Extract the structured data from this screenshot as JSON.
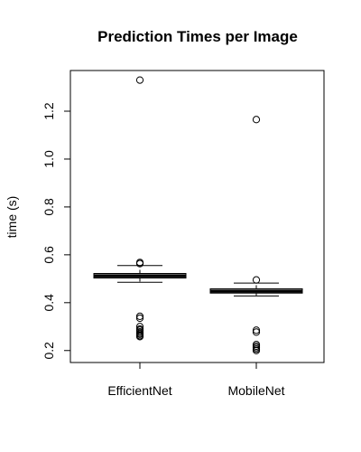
{
  "chart_data": {
    "type": "boxplot",
    "title": "Prediction Times per Image",
    "xlabel": "",
    "ylabel": "time (s)",
    "ylim": [
      0.15,
      1.37
    ],
    "yticks": [
      0.2,
      0.4,
      0.6,
      0.8,
      1.0,
      1.2
    ],
    "ytick_labels": [
      "0.2",
      "0.4",
      "0.6",
      "0.8",
      "1.0",
      "1.2"
    ],
    "grid": false,
    "categories": [
      "EfficientNet",
      "MobileNet"
    ],
    "boxes": [
      {
        "name": "EfficientNet",
        "whisker_low": 0.485,
        "q1": 0.503,
        "median": 0.512,
        "q3": 0.522,
        "whisker_high": 0.555,
        "outliers": [
          1.33,
          0.568,
          0.563,
          0.343,
          0.335,
          0.3,
          0.29,
          0.285,
          0.278,
          0.272,
          0.268,
          0.262,
          0.258
        ]
      },
      {
        "name": "MobileNet",
        "whisker_low": 0.428,
        "q1": 0.44,
        "median": 0.448,
        "q3": 0.458,
        "whisker_high": 0.482,
        "outliers": [
          1.165,
          0.495,
          0.285,
          0.277,
          0.225,
          0.218,
          0.212,
          0.206,
          0.2
        ]
      }
    ]
  }
}
